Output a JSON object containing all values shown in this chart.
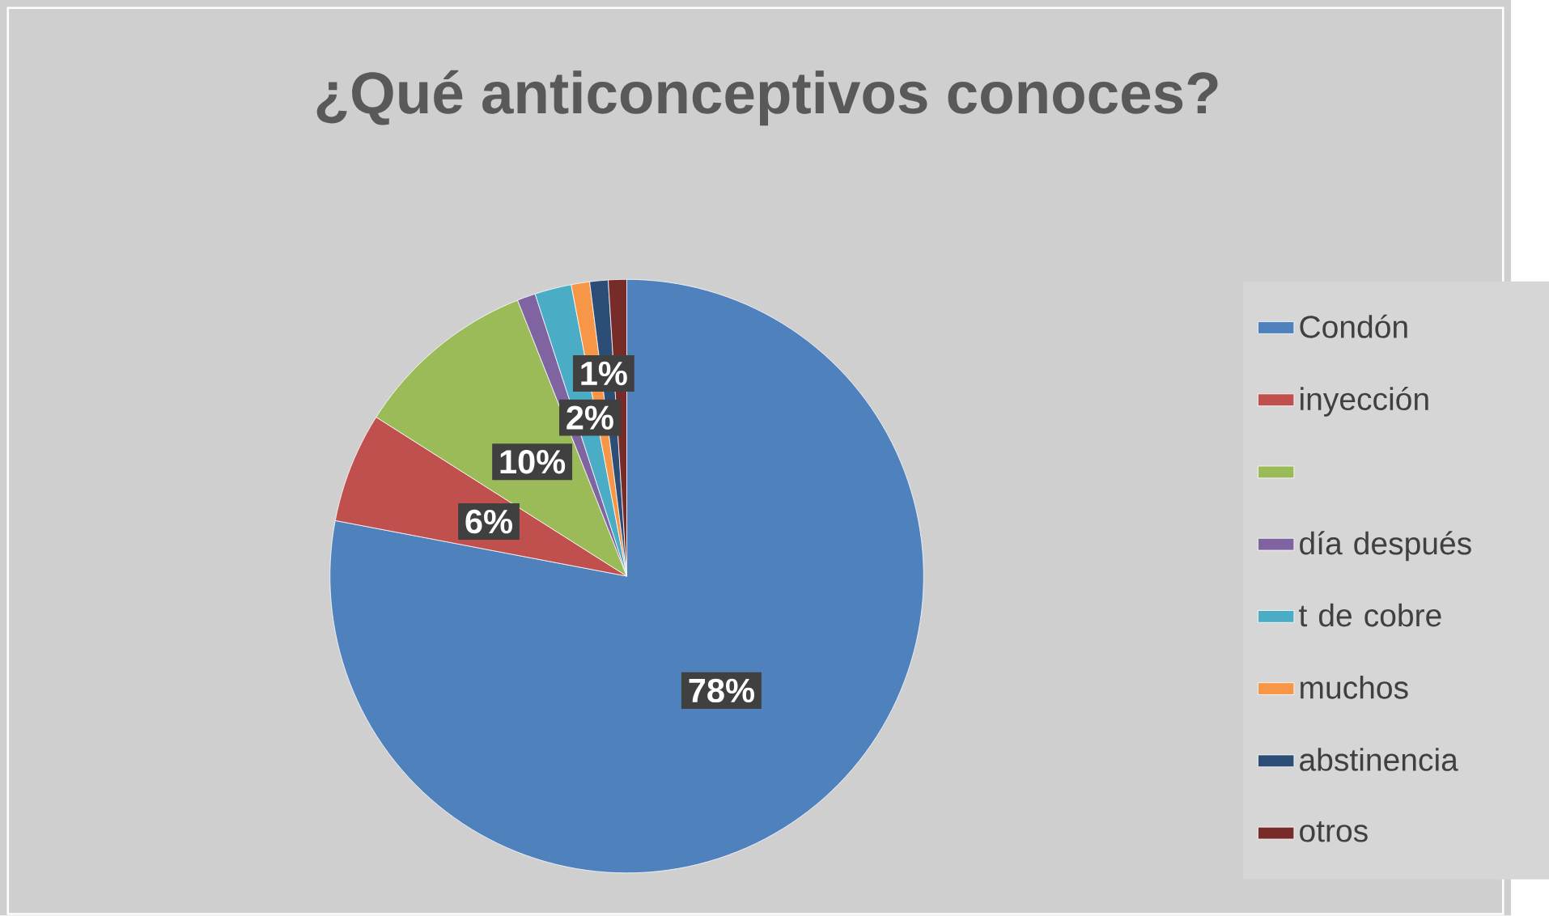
{
  "chart_data": {
    "type": "pie",
    "title": "¿Qué anticonceptivos conoces?",
    "categories": [
      "Condón",
      "inyección",
      null,
      "día después",
      "t de cobre",
      "muchos",
      "abstinencia",
      "otros"
    ],
    "values": [
      78,
      6,
      10,
      1,
      2,
      1,
      1,
      1
    ],
    "colors": [
      "#4f81bd",
      "#c0504d",
      "#9bbb59",
      "#8064a2",
      "#4bacc6",
      "#f79646",
      "#2c4d75",
      "#772c2a"
    ],
    "value_labels": [
      "78%",
      "6%",
      "10%",
      null,
      "2%",
      "1%",
      null,
      null
    ],
    "legend": "right"
  }
}
